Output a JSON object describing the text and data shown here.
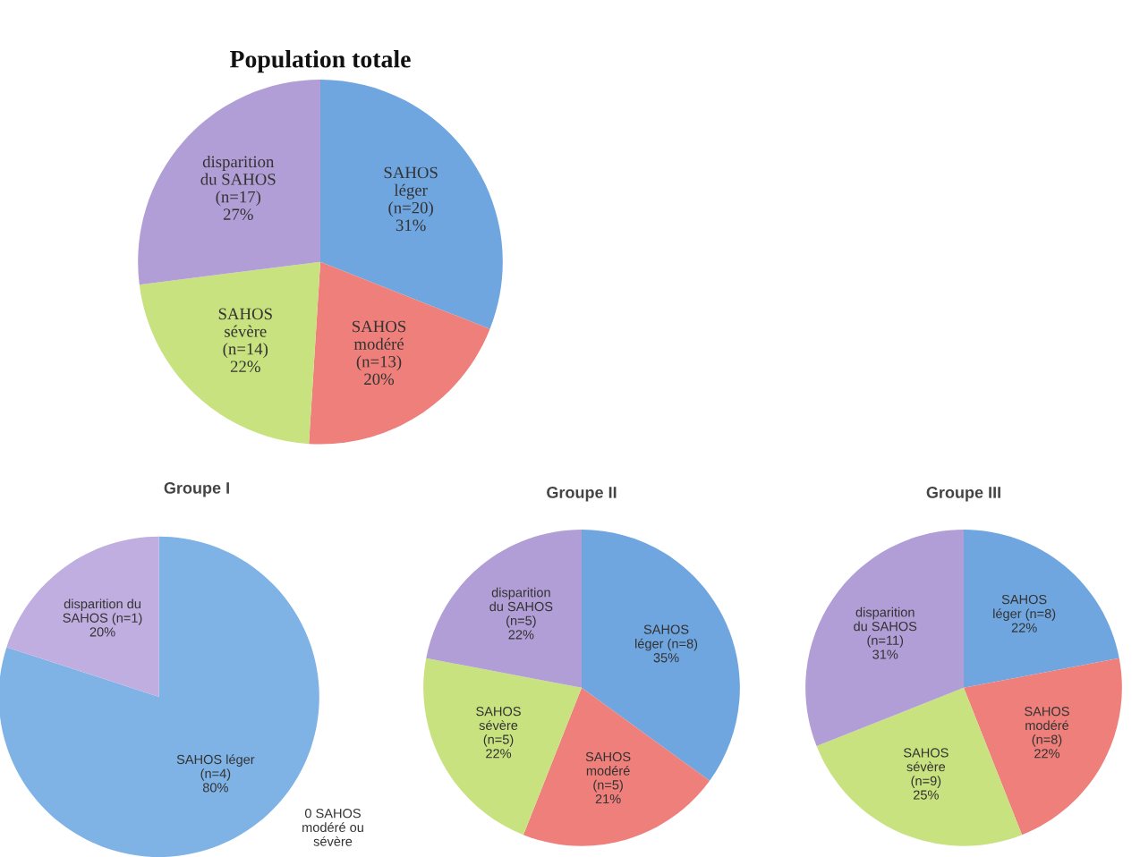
{
  "chart_data": [
    {
      "type": "pie",
      "title": "Population totale",
      "categories": [
        "SAHOS\nléger\n(n=20)",
        "SAHOS\nmodéré\n(n=13)",
        "SAHOS\nsévère\n(n=14)",
        "disparition\ndu SAHOS\n(n=17)"
      ],
      "values": [
        31,
        20,
        22,
        27
      ],
      "value_labels": [
        "31%",
        "20%",
        "22%",
        "27%"
      ],
      "colors": [
        "#6fa6e0",
        "#ee7f7a",
        "#c8e27f",
        "#b29ed6"
      ]
    },
    {
      "type": "pie",
      "title": "Groupe I",
      "categories": [
        "SAHOS léger\n(n=4)",
        "disparition du\nSAHOS (n=1)"
      ],
      "values": [
        80,
        20
      ],
      "value_labels": [
        "80%",
        "20%"
      ],
      "colors": [
        "#7fb3e6",
        "#c0aee0"
      ],
      "annotations": [
        "0 SAHOS\nmodéré ou\nsévère"
      ]
    },
    {
      "type": "pie",
      "title": "Groupe II",
      "categories": [
        "SAHOS\nléger (n=8)",
        "SAHOS\nmodéré\n(n=5)",
        "SAHOS\nsévère\n(n=5)",
        "disparition\ndu SAHOS\n(n=5)"
      ],
      "values": [
        35,
        21,
        22,
        22
      ],
      "value_labels": [
        "35%",
        "21%",
        "22%",
        "22%"
      ],
      "colors": [
        "#6fa6e0",
        "#ee7f7a",
        "#c8e27f",
        "#b29ed6"
      ]
    },
    {
      "type": "pie",
      "title": "Groupe III",
      "categories": [
        "SAHOS\nléger (n=8)",
        "SAHOS\nmodéré\n(n=8)",
        "SAHOS\nsévère\n(n=9)",
        "disparition\ndu SAHOS\n(n=11)"
      ],
      "values": [
        22,
        22,
        25,
        31
      ],
      "value_labels": [
        "22%",
        "22%",
        "25%",
        "31%"
      ],
      "colors": [
        "#6fa6e0",
        "#ee7f7a",
        "#c8e27f",
        "#b29ed6"
      ]
    }
  ]
}
